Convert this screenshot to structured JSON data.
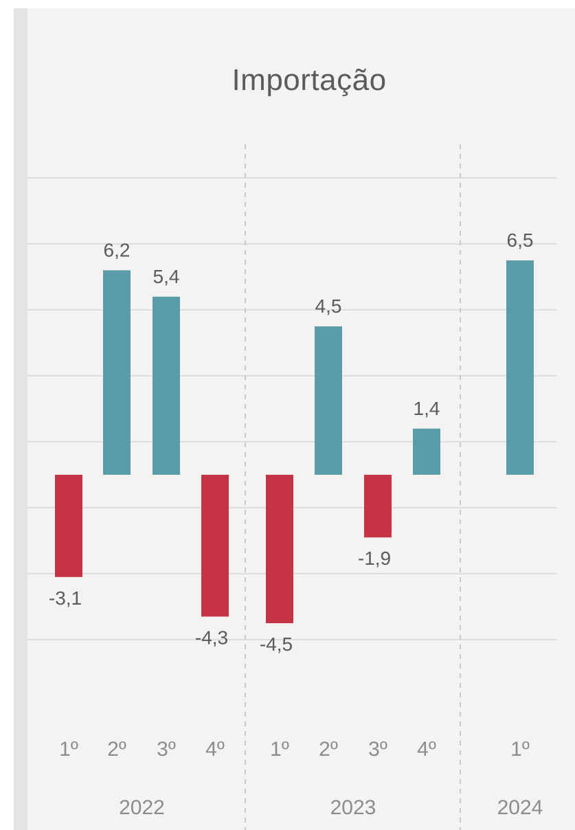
{
  "chart_data": {
    "type": "bar",
    "title": "Importação",
    "categories": [
      "1º",
      "2º",
      "3º",
      "4º",
      "1º",
      "2º",
      "3º",
      "4º",
      "1º"
    ],
    "groups": [
      {
        "label": "2022",
        "count": 4
      },
      {
        "label": "2023",
        "count": 4
      },
      {
        "label": "2024",
        "count": 1
      }
    ],
    "values": [
      -3.1,
      6.2,
      5.4,
      -4.3,
      -4.5,
      4.5,
      -1.9,
      1.4,
      6.5
    ],
    "value_labels": [
      "-3,1",
      "6,2",
      "5,4",
      "-4,3",
      "-4,5",
      "4,5",
      "-1,9",
      "1,4",
      "6,5"
    ],
    "ylim": [
      -6,
      10
    ],
    "grid": true,
    "colors": {
      "positive": "#5a9caa",
      "negative": "#c63344",
      "grid": "#d6d6d4",
      "text": "#5b5b5b"
    }
  }
}
